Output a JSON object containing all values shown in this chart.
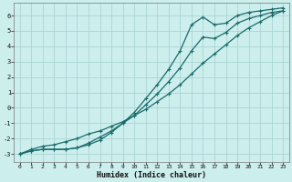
{
  "title": "",
  "xlabel": "Humidex (Indice chaleur)",
  "ylabel": "",
  "bg_color": "#cceeed",
  "grid_color": "#aad4d3",
  "line_color": "#1a6b6b",
  "xlim": [
    -0.5,
    23.5
  ],
  "ylim": [
    -3.5,
    6.8
  ],
  "xticks": [
    0,
    1,
    2,
    3,
    4,
    5,
    6,
    7,
    8,
    9,
    10,
    11,
    12,
    13,
    14,
    15,
    16,
    17,
    18,
    19,
    20,
    21,
    22,
    23
  ],
  "yticks": [
    -3,
    -2,
    -1,
    0,
    1,
    2,
    3,
    4,
    5,
    6
  ],
  "line_straight_x": [
    0,
    1,
    2,
    3,
    4,
    5,
    6,
    7,
    8,
    9,
    10,
    11,
    12,
    13,
    14,
    15,
    16,
    17,
    18,
    19,
    20,
    21,
    22,
    23
  ],
  "line_straight_y": [
    -3.0,
    -2.7,
    -2.5,
    -2.4,
    -2.2,
    -2.0,
    -1.7,
    -1.5,
    -1.2,
    -0.9,
    -0.5,
    -0.1,
    0.4,
    0.9,
    1.5,
    2.2,
    2.9,
    3.5,
    4.1,
    4.7,
    5.2,
    5.6,
    6.0,
    6.3
  ],
  "line_upper_x": [
    0,
    1,
    2,
    3,
    4,
    5,
    6,
    7,
    8,
    9,
    10,
    11,
    12,
    13,
    14,
    15,
    16,
    17,
    18,
    19,
    20,
    21,
    22,
    23
  ],
  "line_upper_y": [
    -3.0,
    -2.8,
    -2.7,
    -2.7,
    -2.7,
    -2.6,
    -2.4,
    -2.1,
    -1.6,
    -1.0,
    -0.3,
    0.6,
    1.5,
    2.5,
    3.7,
    5.4,
    5.9,
    5.4,
    5.5,
    6.0,
    6.2,
    6.3,
    6.4,
    6.5
  ],
  "line_lower_x": [
    0,
    1,
    2,
    3,
    4,
    5,
    6,
    7,
    8,
    9,
    10,
    11,
    12,
    13,
    14,
    15,
    16,
    17,
    18,
    19,
    20,
    21,
    22,
    23
  ],
  "line_lower_y": [
    -3.0,
    -2.8,
    -2.7,
    -2.7,
    -2.7,
    -2.6,
    -2.3,
    -1.9,
    -1.5,
    -1.0,
    -0.5,
    0.2,
    0.9,
    1.7,
    2.6,
    3.7,
    4.6,
    4.5,
    4.9,
    5.5,
    5.8,
    6.0,
    6.2,
    6.3
  ]
}
